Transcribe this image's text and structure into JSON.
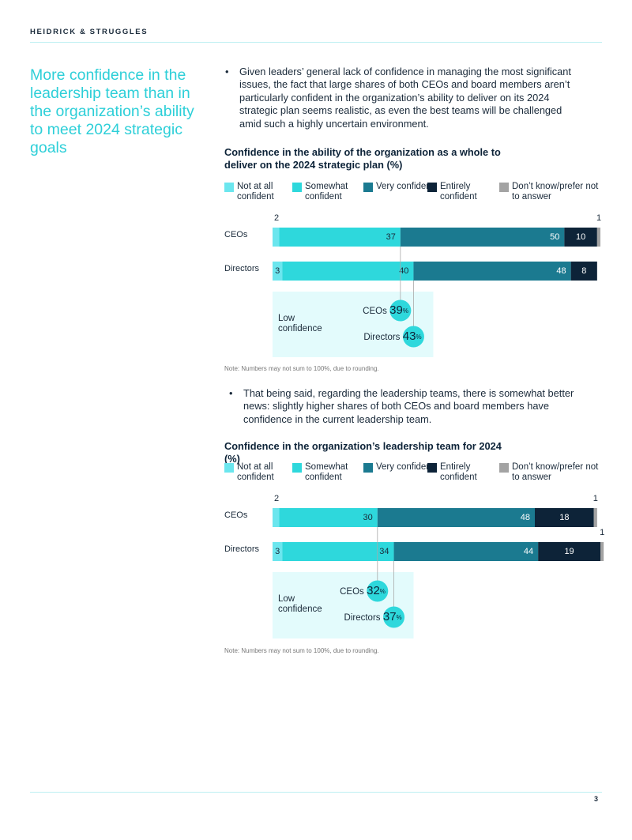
{
  "header": {
    "brand": "HEIDRICK & STRUGGLES"
  },
  "heading": "More confidence in the leadership team than in the organization’s ability to meet 2024 strategic goals",
  "bullets": [
    "Given leaders’ general lack of confidence in managing the most significant issues, the fact that large shares of both CEOs and board members aren’t particularly confident in the organization’s ability to deliver on its 2024 strategic plan seems realistic, as even the best teams will be challenged amid such a highly uncertain environment.",
    "That being said,  regarding the leadership teams, there is somewhat better news: slightly higher shares of both CEOs and board members have confidence in the current leadership team."
  ],
  "page_number": "3",
  "chart_data": [
    {
      "type": "stacked-bar",
      "title": "Confidence in the ability of the organization as a whole to deliver on the 2024 strategic plan (%)",
      "categories": [
        "CEOs",
        "Directors"
      ],
      "xlim": [
        0,
        100
      ],
      "series": [
        {
          "name": "Not at all confident",
          "color": "#6be6ee",
          "values": [
            2,
            3
          ]
        },
        {
          "name": "Somewhat confident",
          "color": "#2ed8dc",
          "values": [
            37,
            40
          ]
        },
        {
          "name": "Very confident",
          "color": "#1b7a90",
          "values": [
            50,
            48
          ]
        },
        {
          "name": "Entirely confident",
          "color": "#0d2338",
          "values": [
            10,
            8
          ]
        },
        {
          "name": "Don’t know/prefer not to answer",
          "color": "#a3a3a3",
          "values": [
            1,
            0
          ]
        }
      ],
      "low_confidence": {
        "title": "Low confidence",
        "items": [
          {
            "name": "CEOs",
            "value": 39,
            "unit": "%"
          },
          {
            "name": "Directors",
            "value": 43,
            "unit": "%"
          }
        ]
      },
      "note": "Note: Numbers may not sum to 100%, due to rounding."
    },
    {
      "type": "stacked-bar",
      "title": "Confidence in the organization’s leadership team for 2024 (%)",
      "categories": [
        "CEOs",
        "Directors"
      ],
      "xlim": [
        0,
        100
      ],
      "series": [
        {
          "name": "Not at all confident",
          "color": "#6be6ee",
          "values": [
            2,
            3
          ]
        },
        {
          "name": "Somewhat confident",
          "color": "#2ed8dc",
          "values": [
            30,
            34
          ]
        },
        {
          "name": "Very confident",
          "color": "#1b7a90",
          "values": [
            48,
            44
          ]
        },
        {
          "name": "Entirely confident",
          "color": "#0d2338",
          "values": [
            18,
            19
          ]
        },
        {
          "name": "Don’t know/prefer not to answer",
          "color": "#a3a3a3",
          "values": [
            1,
            1
          ]
        }
      ],
      "low_confidence": {
        "title": "Low confidence",
        "items": [
          {
            "name": "CEOs",
            "value": 32,
            "unit": "%"
          },
          {
            "name": "Directors",
            "value": 37,
            "unit": "%"
          }
        ]
      },
      "note": "Note: Numbers may not sum to 100%, due to rounding."
    }
  ]
}
